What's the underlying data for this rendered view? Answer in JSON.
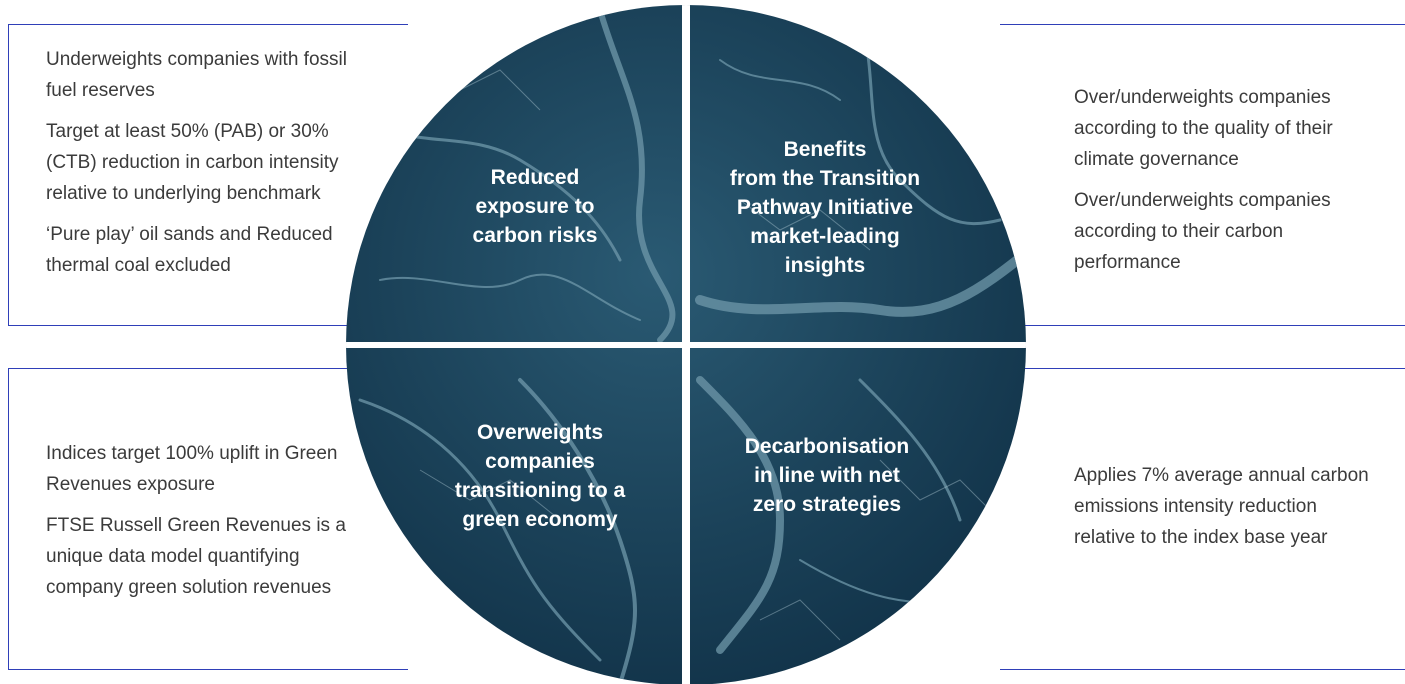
{
  "quadrants": {
    "top_left": "Reduced\nexposure to\ncarbon risks",
    "top_right": "Benefits\nfrom the Transition\nPathway Initiative\nmarket-leading\ninsights",
    "bottom_left": "Overweights\ncompanies\ntransitioning to a\ngreen economy",
    "bottom_right": "Decarbonisation\nin line with net\nzero strategies"
  },
  "panels": {
    "top_left": [
      "Underweights companies with fossil fuel reserves",
      "Target at least 50% (PAB) or 30% (CTB) reduction in carbon intensity relative to underlying benchmark",
      "‘Pure play’ oil sands and Reduced thermal coal excluded"
    ],
    "top_right": [
      "Over/underweights companies according to the quality of their climate governance",
      "Over/underweights companies according to their carbon performance"
    ],
    "bottom_left": [
      "Indices target 100% uplift in Green Revenues exposure",
      "FTSE Russell Green Revenues is a unique data model quantifying company green solution revenues"
    ],
    "bottom_right": [
      "Applies 7% average annual carbon emissions intensity reduction relative to the index base year"
    ]
  },
  "colors": {
    "frame_line": "#2f3fb8",
    "ocean_dark": "#0f2f45",
    "ocean_mid": "#2a5a73",
    "ocean_light": "#6f98aa",
    "text": "#3b3b3b"
  }
}
